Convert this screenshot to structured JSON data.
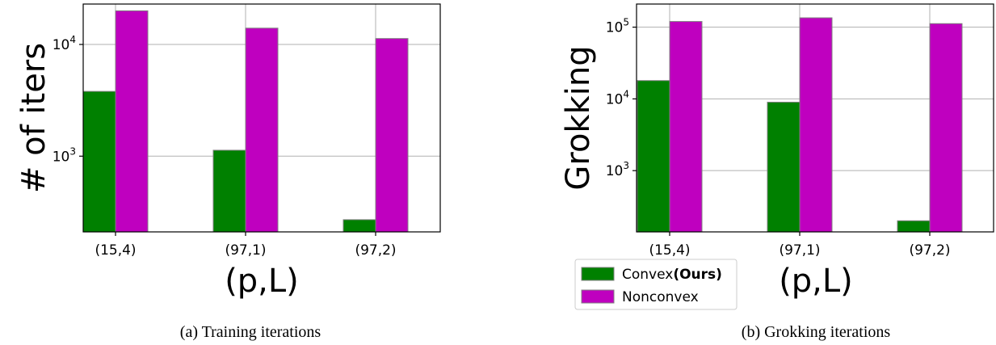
{
  "chart_data": [
    {
      "type": "bar",
      "caption": "(a) Training iterations",
      "xlabel": "(p,L)",
      "ylabel": "# of iters",
      "yscale": "log",
      "ylim": [
        210,
        23000
      ],
      "grid": true,
      "categories": [
        "(15,4)",
        "(97,1)",
        "(97,2)"
      ],
      "yticks": [
        {
          "value": 1000,
          "base": "10",
          "exp": "3"
        },
        {
          "value": 10000,
          "base": "10",
          "exp": "4"
        }
      ],
      "series": [
        {
          "key": "convex",
          "values": [
            3800,
            1130,
            270
          ]
        },
        {
          "key": "nonconvex",
          "values": [
            20000,
            14000,
            11300
          ]
        }
      ]
    },
    {
      "type": "bar",
      "caption": "(b) Grokking iterations",
      "xlabel": "(p,L)",
      "ylabel": "Grokking",
      "yscale": "log",
      "ylim": [
        140,
        210000
      ],
      "grid": true,
      "categories": [
        "(15,4)",
        "(97,1)",
        "(97,2)"
      ],
      "yticks": [
        {
          "value": 1000,
          "base": "10",
          "exp": "3"
        },
        {
          "value": 10000,
          "base": "10",
          "exp": "4"
        },
        {
          "value": 100000,
          "base": "10",
          "exp": "5"
        }
      ],
      "legend": {
        "placement": "lower-left, below axes",
        "entries": [
          {
            "key": "convex",
            "label": "Convex",
            "label_bold": "(Ours)"
          },
          {
            "key": "nonconvex",
            "label": "Nonconvex"
          }
        ]
      },
      "series": [
        {
          "key": "convex",
          "values": [
            18000,
            9000,
            200
          ]
        },
        {
          "key": "nonconvex",
          "values": [
            120000,
            135000,
            112000
          ]
        }
      ]
    }
  ],
  "colors": {
    "convex": "#008000",
    "nonconvex": "#bf00bf",
    "bar_edge": "#808080"
  }
}
